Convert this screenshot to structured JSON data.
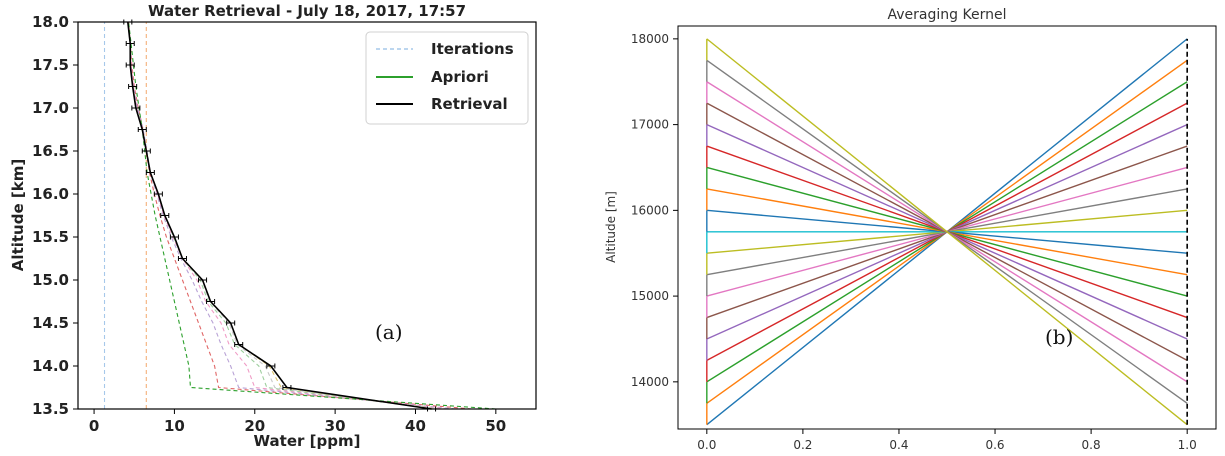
{
  "chart_data": [
    {
      "panel": "a",
      "type": "line",
      "title": "Water Retrieval - July 18, 2017, 17:57",
      "xlabel": "Water [ppm]",
      "ylabel": "Altitude [km]",
      "xlim": [
        -2,
        55
      ],
      "ylim": [
        13.5,
        18.0
      ],
      "xticks": [
        0,
        10,
        20,
        30,
        40,
        50
      ],
      "yticks": [
        13.5,
        14.0,
        14.5,
        15.0,
        15.5,
        16.0,
        16.5,
        17.0,
        17.5,
        18.0
      ],
      "annotation": "(a)",
      "legend_position": "top-right",
      "legend": [
        "Iterations",
        "Apriori",
        "Retrieval"
      ],
      "colors": {
        "apriori": "#2ca02c",
        "retrieval": "#000000",
        "iterations": [
          "#a6c8ea",
          "#f5b07a",
          "#e06666",
          "#b9a3d6",
          "#f09cc6",
          "#9ecf9e",
          "#c9c9c9",
          "#dbc26a"
        ]
      },
      "altitudes": [
        13.5,
        13.75,
        14.0,
        14.25,
        14.5,
        14.75,
        15.0,
        15.25,
        15.5,
        15.75,
        16.0,
        16.25,
        16.5,
        16.75,
        17.0,
        17.25,
        17.5,
        17.75,
        18.0
      ],
      "retrieval": [
        42.0,
        24.0,
        22.0,
        18.0,
        17.0,
        14.5,
        13.5,
        11.0,
        10.0,
        8.8,
        8.0,
        7.0,
        6.5,
        6.0,
        5.2,
        4.8,
        4.5,
        4.5,
        4.2
      ],
      "retrieval_error": 0.5,
      "apriori": [
        50.0,
        12.0,
        11.8,
        11.2,
        10.6,
        10.0,
        9.4,
        8.8,
        8.2,
        7.6,
        7.1,
        6.6,
        6.3,
        6.0,
        5.6,
        5.2,
        4.9,
        4.6,
        4.3
      ],
      "iterations": [
        [
          1.3,
          1.3,
          1.3,
          1.3,
          1.3,
          1.3,
          1.3,
          1.3,
          1.3,
          1.3,
          1.3,
          1.3,
          1.3,
          1.3,
          1.3,
          1.3,
          1.3,
          1.3,
          1.3
        ],
        [
          6.5,
          6.5,
          6.5,
          6.5,
          6.5,
          6.5,
          6.5,
          6.5,
          6.5,
          6.5,
          6.5,
          6.5,
          6.5,
          6.5,
          6.5,
          6.5,
          6.5,
          6.5,
          6.5
        ],
        [
          47.0,
          15.5,
          15.0,
          14.0,
          13.0,
          12.0,
          11.0,
          10.0,
          9.0,
          8.2,
          7.5,
          6.9,
          6.5,
          6.1,
          5.5,
          5.0,
          4.7,
          4.5,
          4.3
        ],
        [
          45.0,
          18.0,
          17.0,
          15.8,
          14.8,
          13.4,
          12.2,
          10.8,
          9.6,
          8.6,
          7.8,
          7.0,
          6.6,
          6.1,
          5.4,
          4.9,
          4.6,
          4.5,
          4.2
        ],
        [
          44.0,
          20.0,
          19.0,
          16.8,
          15.8,
          13.9,
          12.8,
          11.0,
          9.8,
          8.7,
          7.9,
          7.0,
          6.5,
          6.0,
          5.3,
          4.9,
          4.6,
          4.5,
          4.2
        ],
        [
          43.0,
          21.5,
          20.5,
          17.5,
          16.4,
          14.2,
          13.2,
          11.0,
          9.9,
          8.8,
          8.0,
          7.0,
          6.5,
          6.0,
          5.2,
          4.8,
          4.5,
          4.5,
          4.2
        ],
        [
          42.5,
          22.5,
          21.3,
          17.8,
          16.8,
          14.4,
          13.4,
          11.0,
          10.0,
          8.8,
          8.0,
          7.0,
          6.5,
          6.0,
          5.2,
          4.8,
          4.5,
          4.5,
          4.2
        ],
        [
          42.2,
          23.3,
          21.8,
          18.0,
          17.0,
          14.5,
          13.5,
          11.0,
          10.0,
          8.8,
          8.0,
          7.0,
          6.5,
          6.0,
          5.2,
          4.8,
          4.5,
          4.5,
          4.2
        ]
      ]
    },
    {
      "panel": "b",
      "type": "line",
      "title": "Averaging Kernel",
      "xlabel": "",
      "ylabel": "Altitude [m]",
      "xlim": [
        -0.06,
        1.06
      ],
      "ylim": [
        13450,
        18150
      ],
      "xticks": [
        0.0,
        0.2,
        0.4,
        0.6,
        0.8,
        1.0
      ],
      "yticks": [
        14000,
        15000,
        16000,
        17000,
        18000
      ],
      "annotation": "(b)",
      "grid": false,
      "altitudes": [
        13500,
        13750,
        14000,
        14250,
        14500,
        14750,
        15000,
        15250,
        15500,
        15750,
        16000,
        16250,
        16500,
        16750,
        17000,
        17250,
        17500,
        17750,
        18000
      ],
      "palette": [
        "#1f77b4",
        "#ff7f0e",
        "#2ca02c",
        "#d62728",
        "#9467bd",
        "#8c564b",
        "#e377c2",
        "#7f7f7f",
        "#bcbd22",
        "#17becf"
      ],
      "right_edge_color": "#000000"
    }
  ]
}
